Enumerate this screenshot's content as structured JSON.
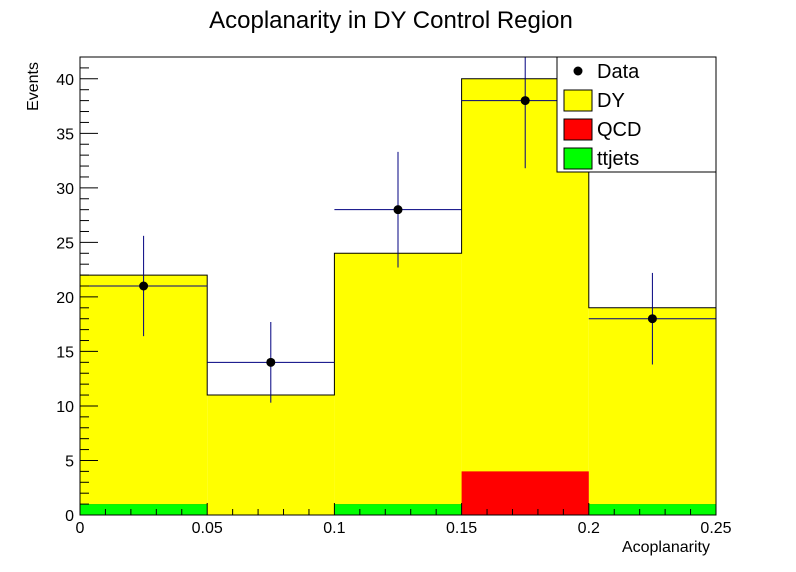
{
  "chart_data": {
    "type": "bar",
    "title": "Acoplanarity in DY Control Region",
    "xlabel": "Acoplanarity",
    "ylabel": "Events",
    "xlim": [
      0,
      0.25
    ],
    "ylim": [
      0,
      42
    ],
    "bin_edges": [
      0,
      0.05,
      0.1,
      0.15,
      0.2,
      0.25
    ],
    "x_ticks": [
      "0",
      "0.05",
      "0.1",
      "0.15",
      "0.2",
      "0.25"
    ],
    "y_ticks": [
      "0",
      "5",
      "10",
      "15",
      "20",
      "25",
      "30",
      "35",
      "40"
    ],
    "stacked": true,
    "series": [
      {
        "name": "ttjets",
        "color": "#00ff00",
        "values": [
          1,
          0,
          1,
          0,
          1
        ]
      },
      {
        "name": "QCD",
        "color": "#ff0000",
        "values": [
          0,
          0,
          0,
          4,
          0
        ]
      },
      {
        "name": "DY",
        "color": "#ffff00",
        "values": [
          21,
          11,
          23,
          36,
          18
        ]
      }
    ],
    "mc_total": [
      22,
      11,
      24,
      40,
      19
    ],
    "data": {
      "name": "Data",
      "x": [
        0.025,
        0.075,
        0.125,
        0.175,
        0.225
      ],
      "y": [
        21,
        14,
        28,
        38,
        18
      ],
      "yerr_low": [
        4.6,
        3.7,
        5.3,
        6.2,
        4.2
      ],
      "yerr_high": [
        4.6,
        3.7,
        5.3,
        6.2,
        4.2
      ]
    },
    "legend": {
      "position": "top-right",
      "entries": [
        {
          "label": "Data",
          "marker": "point",
          "color": "#000000"
        },
        {
          "label": "DY",
          "marker": "box",
          "color": "#ffff00"
        },
        {
          "label": "QCD",
          "marker": "box",
          "color": "#ff0000"
        },
        {
          "label": "ttjets",
          "marker": "box",
          "color": "#00ff00"
        }
      ]
    },
    "colors": {
      "data_line": "#000080",
      "data_marker": "#000000",
      "frame": "#000000"
    },
    "grid": false
  }
}
